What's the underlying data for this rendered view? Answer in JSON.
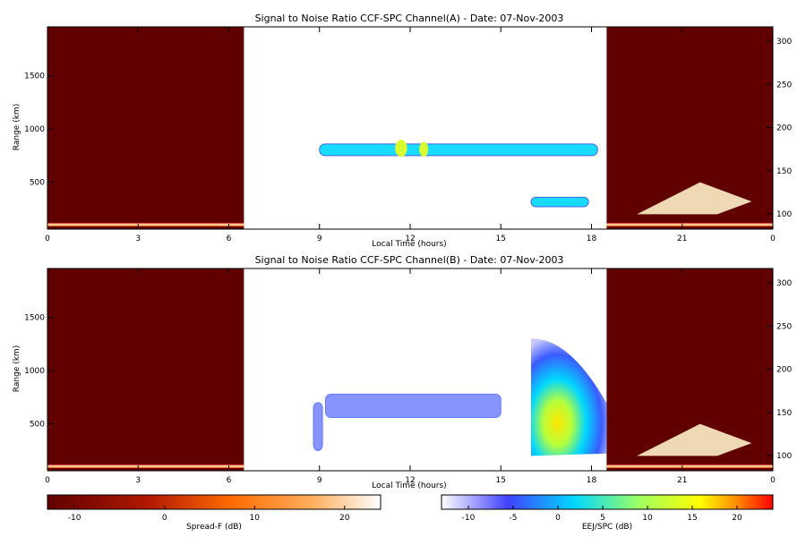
{
  "chart_data": [
    {
      "type": "heatmap",
      "title": "Signal to Noise Ratio CCF-SPC Channel(A) - Date: 07-Nov-2003",
      "xlabel": "Local Time (hours)",
      "ylabel": "Range (km)",
      "xlim": [
        0,
        24
      ],
      "ylim": [
        60,
        1960
      ],
      "xticks": [
        "0",
        "3",
        "6",
        "9",
        "12",
        "15",
        "18",
        "21",
        "0"
      ],
      "yticks": [
        500,
        1000,
        1500
      ],
      "y2ticks": [
        100,
        150,
        200,
        250,
        300
      ],
      "features": [
        {
          "layer": "spread_f",
          "kind": "background",
          "x": [
            0,
            6.5
          ],
          "y": [
            60,
            1960
          ],
          "value": -13
        },
        {
          "layer": "spread_f",
          "kind": "background",
          "x": [
            18.5,
            24
          ],
          "y": [
            60,
            1960
          ],
          "value": -13
        },
        {
          "layer": "spread_f",
          "kind": "band",
          "x": [
            0,
            6.5
          ],
          "y": [
            90,
            120
          ],
          "value": 20
        },
        {
          "layer": "spread_f",
          "kind": "band",
          "x": [
            18.5,
            24
          ],
          "y": [
            90,
            120
          ],
          "value": 20
        },
        {
          "layer": "spread_f",
          "kind": "plume",
          "x": [
            19.5,
            23.3
          ],
          "y": [
            200,
            500
          ],
          "value": 15
        },
        {
          "layer": "eej",
          "kind": "band",
          "x": [
            9.0,
            18.2
          ],
          "y": [
            750,
            860
          ],
          "value": 2
        },
        {
          "layer": "eej",
          "kind": "blob",
          "x": [
            11.5,
            11.9
          ],
          "y": [
            740,
            900
          ],
          "value": 12
        },
        {
          "layer": "eej",
          "kind": "blob",
          "x": [
            12.3,
            12.6
          ],
          "y": [
            740,
            880
          ],
          "value": 10
        },
        {
          "layer": "eej",
          "kind": "band",
          "x": [
            16.0,
            17.9
          ],
          "y": [
            270,
            360
          ],
          "value": 0
        }
      ]
    },
    {
      "type": "heatmap",
      "title": "Signal to Noise Ratio CCF-SPC Channel(B) - Date: 07-Nov-2003",
      "xlabel": "Local Time (hours)",
      "ylabel": "Range (km)",
      "xlim": [
        0,
        24
      ],
      "ylim": [
        60,
        1960
      ],
      "xticks": [
        "0",
        "3",
        "6",
        "9",
        "12",
        "15",
        "18",
        "21",
        "0"
      ],
      "yticks": [
        500,
        1000,
        1500
      ],
      "y2ticks": [
        100,
        150,
        200,
        250,
        300
      ],
      "features": [
        {
          "layer": "spread_f",
          "kind": "background",
          "x": [
            0,
            6.5
          ],
          "y": [
            60,
            1960
          ],
          "value": -13
        },
        {
          "layer": "spread_f",
          "kind": "background",
          "x": [
            18.5,
            24
          ],
          "y": [
            60,
            1960
          ],
          "value": -13
        },
        {
          "layer": "spread_f",
          "kind": "band",
          "x": [
            0,
            6.5
          ],
          "y": [
            90,
            120
          ],
          "value": 20
        },
        {
          "layer": "spread_f",
          "kind": "band",
          "x": [
            18.5,
            24
          ],
          "y": [
            90,
            120
          ],
          "value": 20
        },
        {
          "layer": "spread_f",
          "kind": "plume",
          "x": [
            19.5,
            23.3
          ],
          "y": [
            200,
            500
          ],
          "value": 15
        },
        {
          "layer": "eej",
          "kind": "band",
          "x": [
            8.8,
            9.1
          ],
          "y": [
            250,
            700
          ],
          "value": -8
        },
        {
          "layer": "eej",
          "kind": "band",
          "x": [
            9.2,
            15.0
          ],
          "y": [
            560,
            780
          ],
          "value": -8
        },
        {
          "layer": "eej",
          "kind": "plume",
          "x": [
            16.0,
            18.5
          ],
          "y": [
            200,
            1300
          ],
          "value": 15
        }
      ]
    }
  ],
  "colorbars": [
    {
      "label": "Spread-F (dB)",
      "range": [
        -13,
        24
      ],
      "ticks": [
        "-10",
        "0",
        "10",
        "20"
      ]
    },
    {
      "label": "EEJ/SPC (dB)",
      "range": [
        -13,
        24
      ],
      "ticks": [
        "-10",
        "-5",
        "0",
        "5",
        "10",
        "15",
        "20"
      ]
    }
  ],
  "colors": {
    "background": "#ffffff",
    "spread_f_dark": "#600000",
    "eej_low": "#ffffff",
    "eej_high": "#ff1a1a"
  }
}
